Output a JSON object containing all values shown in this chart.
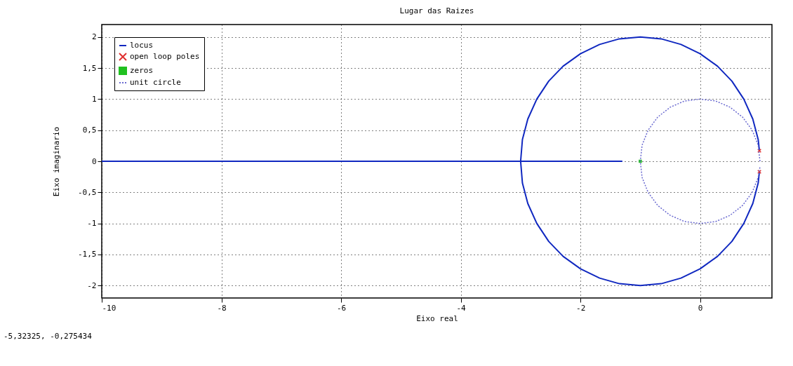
{
  "chart_data": {
    "type": "line",
    "title": "Lugar das Raizes",
    "xlabel": "Eixo real",
    "ylabel": "Eixo imaginario",
    "xlim": [
      -10,
      1.2
    ],
    "ylim": [
      -2.2,
      2.2
    ],
    "xticks": [
      -10,
      -8,
      -6,
      -4,
      -2,
      0
    ],
    "yticks": [
      -2,
      {
        "value": -1.5,
        "label": "-1,5"
      },
      -1,
      {
        "value": -0.5,
        "label": "-0,5"
      },
      0,
      {
        "value": 0.5,
        "label": "0,5"
      },
      1,
      {
        "value": 1.5,
        "label": "1,5"
      },
      2
    ],
    "grid": true,
    "legend": "top left",
    "annotations": [
      "-5,32325, -0,275434"
    ],
    "series": [
      {
        "name": "locus",
        "color": "#1028c0",
        "line_style": "solid",
        "marker": "none",
        "x": [
          -10,
          -1.3,
          null,
          0.99,
          0.97,
          0.88,
          0.73,
          0.53,
          0.29,
          0,
          -0.32,
          -0.65,
          -1,
          -1.35,
          -1.68,
          -2,
          -2.29,
          -2.53,
          -2.73,
          -2.88,
          -2.97,
          -3,
          -2.97,
          -2.88,
          -2.73,
          -2.53,
          -2.29,
          -2,
          -1.68,
          -1.35,
          -1,
          -0.65,
          -0.32,
          0,
          0.29,
          0.53,
          0.73,
          0.88,
          0.97,
          0.99
        ],
        "values": [
          0,
          0,
          null,
          0.17,
          0.35,
          0.68,
          1.0,
          1.29,
          1.53,
          1.73,
          1.88,
          1.97,
          2,
          1.97,
          1.88,
          1.73,
          1.53,
          1.29,
          1.0,
          0.68,
          0.35,
          0,
          -0.35,
          -0.68,
          -1.0,
          -1.29,
          -1.53,
          -1.73,
          -1.88,
          -1.97,
          -2,
          -1.97,
          -1.88,
          -1.73,
          -1.53,
          -1.29,
          -1.0,
          -0.68,
          -0.35,
          -0.17
        ]
      },
      {
        "name": "open loop poles",
        "type": "scatter",
        "color": "#e03030",
        "marker": "cross",
        "x": [
          0.99,
          0.99
        ],
        "values": [
          0.17,
          -0.17
        ]
      },
      {
        "name": "zeros",
        "type": "scatter",
        "color": "#20c020",
        "marker": "square",
        "x": [
          -1
        ],
        "values": [
          0
        ]
      },
      {
        "name": "unit circle",
        "color": "#6a6ad0",
        "line_style": "dotted",
        "marker": "none",
        "x": [
          1,
          0.97,
          0.87,
          0.71,
          0.5,
          0.26,
          0,
          -0.26,
          -0.5,
          -0.71,
          -0.87,
          -0.97,
          -1,
          -0.97,
          -0.87,
          -0.71,
          -0.5,
          -0.26,
          0,
          0.26,
          0.5,
          0.71,
          0.87,
          0.97,
          1.0
        ],
        "values": [
          0,
          0.26,
          0.5,
          0.71,
          0.87,
          0.97,
          1,
          0.97,
          0.87,
          0.71,
          0.5,
          0.26,
          0,
          -0.26,
          -0.5,
          -0.71,
          -0.87,
          -0.97,
          -1,
          -0.97,
          -0.87,
          -0.71,
          -0.5,
          -0.26,
          -0.09
        ]
      }
    ]
  }
}
